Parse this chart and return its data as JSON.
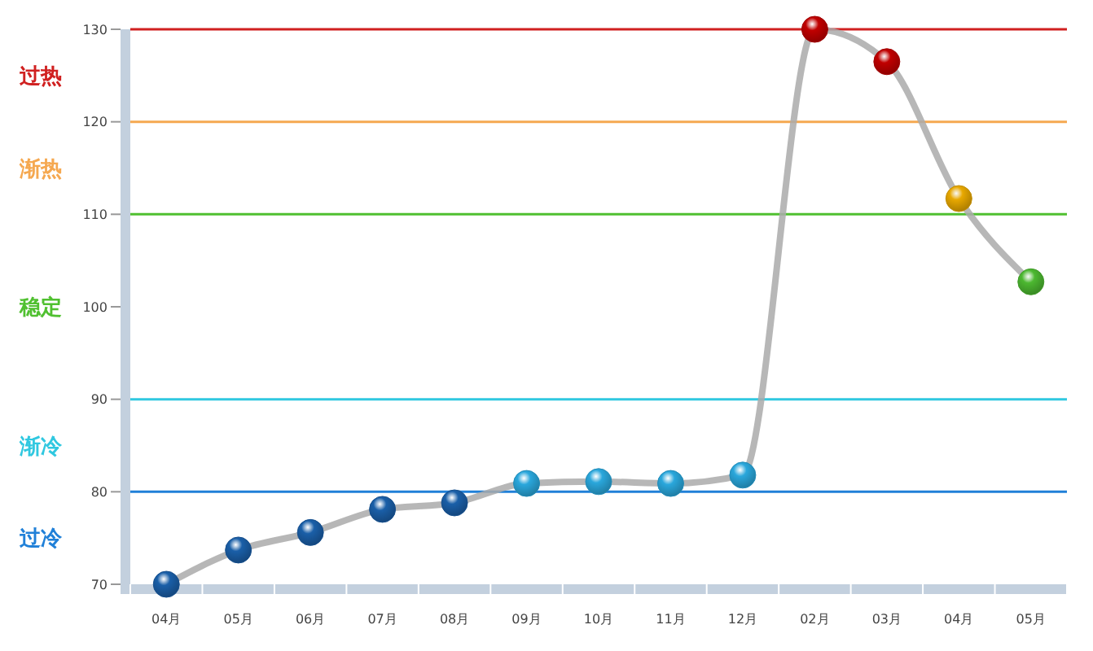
{
  "chart_data": {
    "type": "line",
    "categories": [
      "04月",
      "05月",
      "06月",
      "07月",
      "08月",
      "09月",
      "10月",
      "11月",
      "12月",
      "02月",
      "03月",
      "04月",
      "05月"
    ],
    "series": [
      {
        "color": "#aaaaaa",
        "values": [
          70,
          73.7,
          75.6,
          78.1,
          78.8,
          80.9,
          81.1,
          80.9,
          81.8,
          130,
          126.5,
          111.7,
          102.7
        ],
        "colors": [
          "#1a5fa8",
          "#1a5fa8",
          "#1a5fa8",
          "#1a5fa8",
          "#1a5fa8",
          "#2aa7dc",
          "#2aa7dc",
          "#2aa7dc",
          "#2aa7dc",
          "#c00000",
          "#c00000",
          "#e8a800",
          "#4cb830"
        ]
      }
    ],
    "ylim": [
      70,
      130
    ],
    "yticks": [
      70,
      80,
      90,
      100,
      110,
      120,
      130
    ],
    "marker": "circle",
    "ref_lines": [
      {
        "axis": "y",
        "value": 130,
        "color": "#d02020"
      },
      {
        "axis": "y",
        "value": 120,
        "color": "#f5a850"
      },
      {
        "axis": "y",
        "value": 110,
        "color": "#50c030"
      },
      {
        "axis": "y",
        "value": 90,
        "color": "#30c8e0"
      },
      {
        "axis": "y",
        "value": 80,
        "color": "#2080d8"
      }
    ],
    "annotations": [
      "过热",
      "渐热",
      "稳定",
      "渐冷",
      "过冷"
    ]
  }
}
